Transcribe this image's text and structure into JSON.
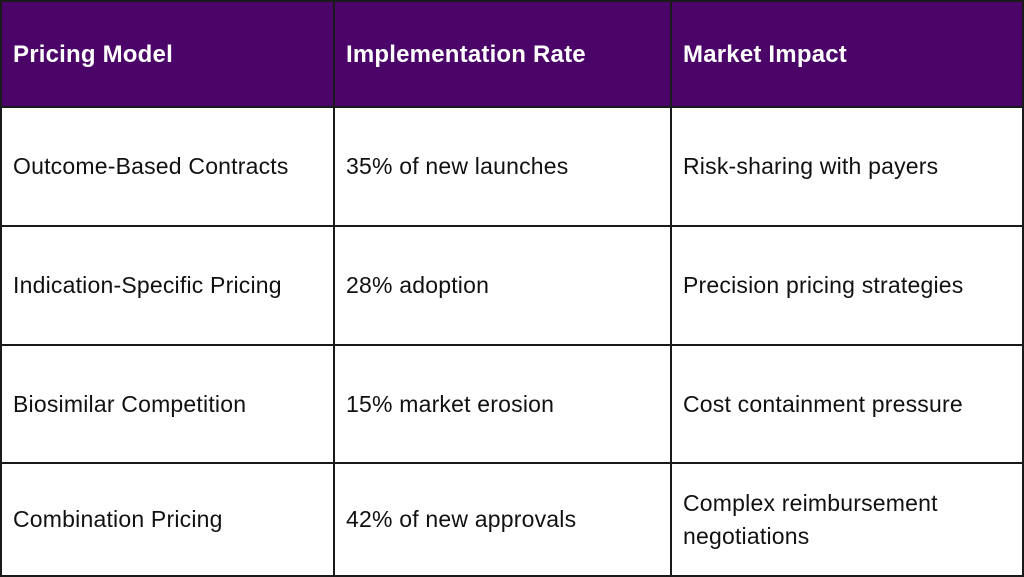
{
  "table": {
    "headers": [
      "Pricing Model",
      "Implementation Rate",
      "Market Impact"
    ],
    "rows": [
      [
        "Outcome-Based Contracts",
        "35% of new launches",
        "Risk-sharing with payers"
      ],
      [
        "Indication-Specific Pricing",
        "28% adoption",
        "Precision pricing strategies"
      ],
      [
        "Biosimilar Competition",
        "15% market erosion",
        "Cost containment pressure"
      ],
      [
        "Combination Pricing",
        "42% of new approvals",
        "Complex reimbursement negotiations"
      ]
    ]
  },
  "colors": {
    "header_background": "#4b0569",
    "header_text": "#ffffff",
    "body_text": "#111111",
    "border": "#1a1a1a"
  }
}
